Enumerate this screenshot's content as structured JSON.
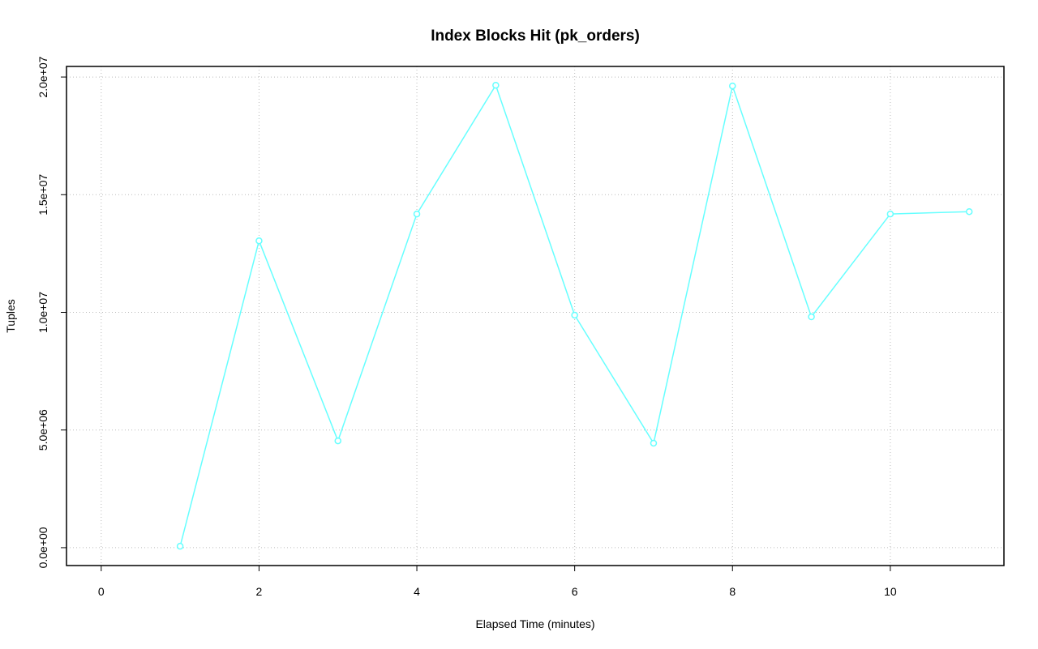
{
  "chart_data": {
    "type": "line",
    "title": "Index Blocks Hit (pk_orders)",
    "x_label": "Elapsed Time (minutes)",
    "y_label": "Tuples",
    "x": [
      1,
      2,
      3,
      4,
      5,
      6,
      7,
      8,
      9,
      10,
      11
    ],
    "series": [
      {
        "color": "#66ffff",
        "values": [
          60000,
          13040000,
          4540000,
          14180000,
          19650000,
          9880000,
          4440000,
          19620000,
          9810000,
          14180000,
          14280000
        ]
      }
    ],
    "xlim": [
      -0.44,
      11.44
    ],
    "xticks": [
      0,
      2,
      4,
      6,
      8,
      10
    ],
    "ylim": [
      -760000,
      20450000
    ],
    "yticks": [
      {
        "value": 0,
        "label": "0.0e+00"
      },
      {
        "value": 5000000,
        "label": "5.0e+06"
      },
      {
        "value": 10000000,
        "label": "1.0e+07"
      },
      {
        "value": 15000000,
        "label": "1.5e+07"
      },
      {
        "value": 20000000,
        "label": "2.0e+07"
      }
    ],
    "grid": true
  }
}
